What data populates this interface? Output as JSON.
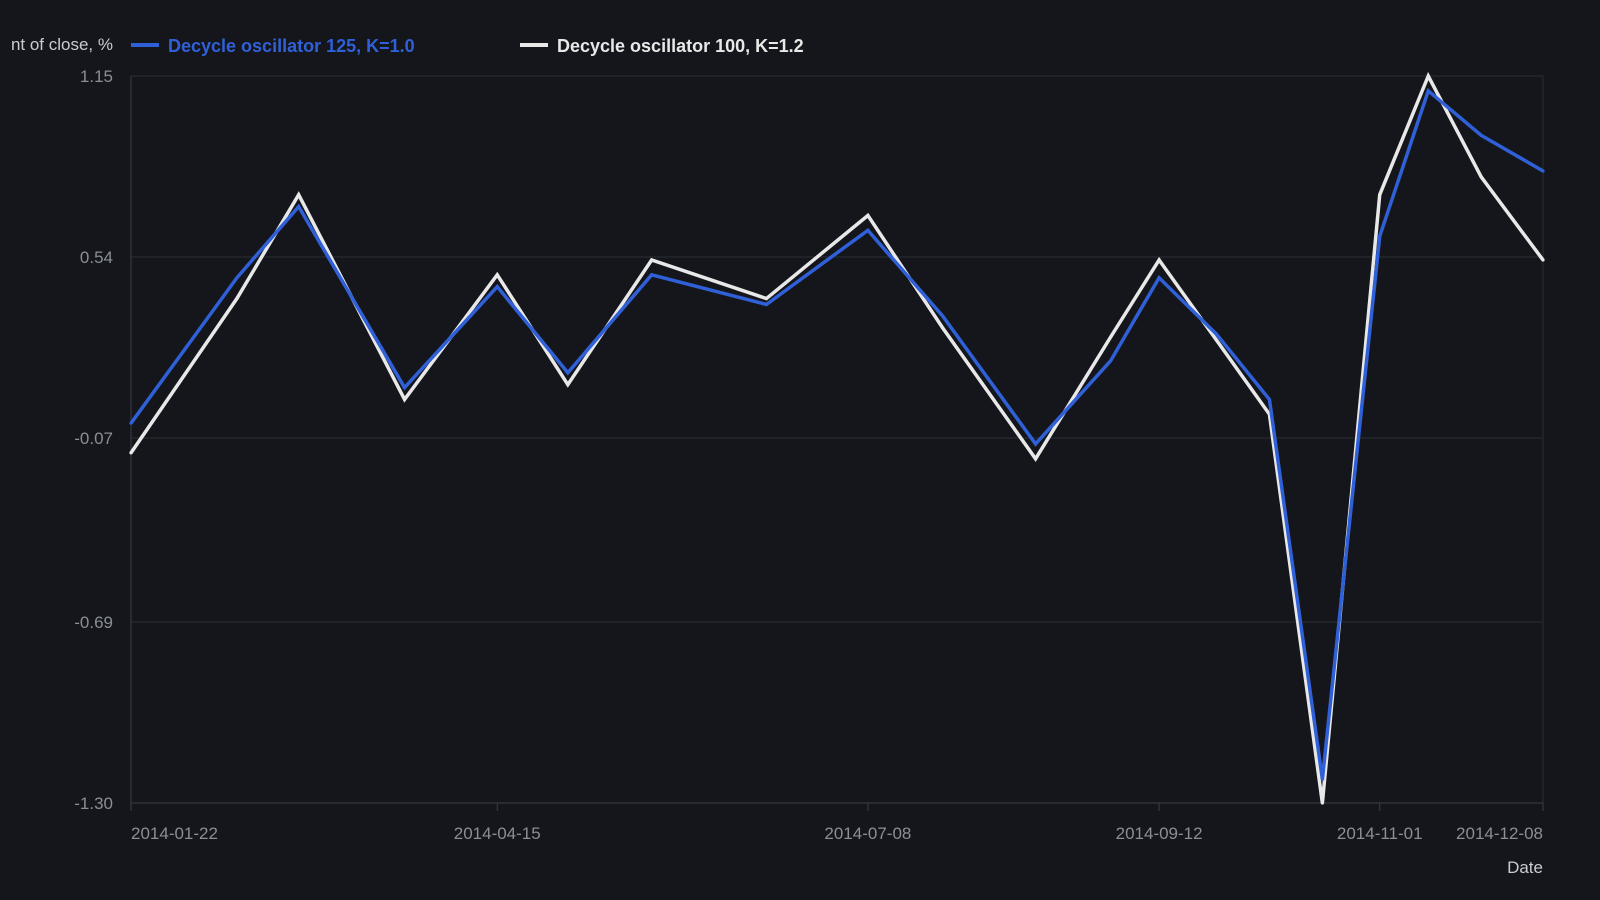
{
  "chart_data": {
    "type": "line",
    "ylabel": "nt of close, %",
    "xlabel": "Date",
    "ylim": [
      -1.3,
      1.15
    ],
    "y_ticks": [
      "1.15",
      "0.54",
      "-0.07",
      "-0.69",
      "-1.30"
    ],
    "x_ticks": [
      {
        "label": "2014-01-22",
        "date": "2014-01-22"
      },
      {
        "label": "2014-04-15",
        "date": "2014-04-15"
      },
      {
        "label": "2014-07-08",
        "date": "2014-07-08"
      },
      {
        "label": "2014-09-12",
        "date": "2014-09-12"
      },
      {
        "label": "2014-11-01",
        "date": "2014-11-01"
      },
      {
        "label": "2014-12-08",
        "date": "2014-12-08"
      }
    ],
    "x": [
      "2014-01-22",
      "2014-02-15",
      "2014-03-01",
      "2014-03-25",
      "2014-04-15",
      "2014-05-01",
      "2014-05-20",
      "2014-06-15",
      "2014-07-08",
      "2014-07-25",
      "2014-08-15",
      "2014-09-01",
      "2014-09-12",
      "2014-09-25",
      "2014-10-07",
      "2014-10-19",
      "2014-11-01",
      "2014-11-12",
      "2014-11-24",
      "2014-12-08"
    ],
    "series": [
      {
        "name": "Decycle oscillator 125, K=1.0",
        "color": "#3060d8",
        "values": [
          -0.02,
          0.47,
          0.71,
          0.1,
          0.44,
          0.15,
          0.48,
          0.38,
          0.63,
          0.34,
          -0.09,
          0.19,
          0.47,
          0.28,
          0.06,
          -1.22,
          0.61,
          1.1,
          0.95,
          0.83
        ]
      },
      {
        "name": "Decycle oscillator 100, K=1.2",
        "color": "#e8e8e8",
        "values": [
          -0.12,
          0.4,
          0.75,
          0.06,
          0.48,
          0.11,
          0.53,
          0.4,
          0.68,
          0.3,
          -0.14,
          0.27,
          0.53,
          0.26,
          0.01,
          -1.3,
          0.75,
          1.15,
          0.81,
          0.53
        ]
      }
    ],
    "grid": true,
    "legend_position": "top-left"
  },
  "colors": {
    "background": "#14161b",
    "grid": "#2a2d33",
    "axis": "#3a3d44",
    "tick_text": "#8a8e96"
  }
}
